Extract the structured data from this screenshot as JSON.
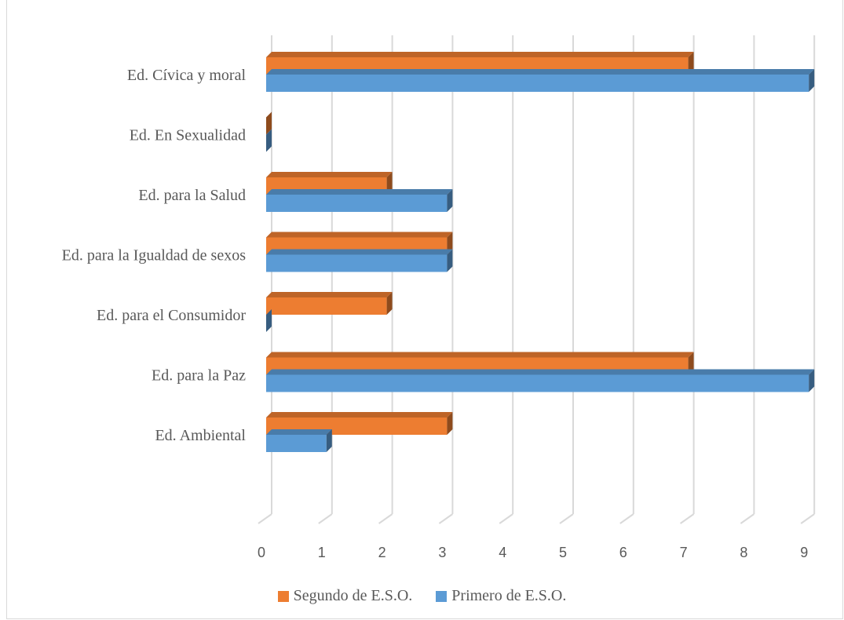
{
  "chart_data": {
    "type": "bar",
    "orientation": "horizontal",
    "style": "3d-clustered",
    "categories": [
      "Ed. Cívica y moral",
      "Ed. En Sexualidad",
      "Ed. para la Salud",
      "Ed. para la Igualdad de sexos",
      "Ed. para el Consumidor",
      "Ed. para la Paz",
      "Ed. Ambiental"
    ],
    "series": [
      {
        "name": "Segundo de E.S.O.",
        "color": "#ED7D31",
        "values": [
          7,
          0,
          2,
          3,
          2,
          7,
          3
        ]
      },
      {
        "name": "Primero de E.S.O.",
        "color": "#5B9BD5",
        "values": [
          9,
          0,
          3,
          3,
          0,
          9,
          1
        ]
      }
    ],
    "xlim": [
      0,
      9
    ],
    "x_ticks": [
      "0",
      "1",
      "2",
      "3",
      "4",
      "5",
      "6",
      "7",
      "8",
      "9"
    ],
    "grid": true,
    "legend_position": "bottom"
  }
}
